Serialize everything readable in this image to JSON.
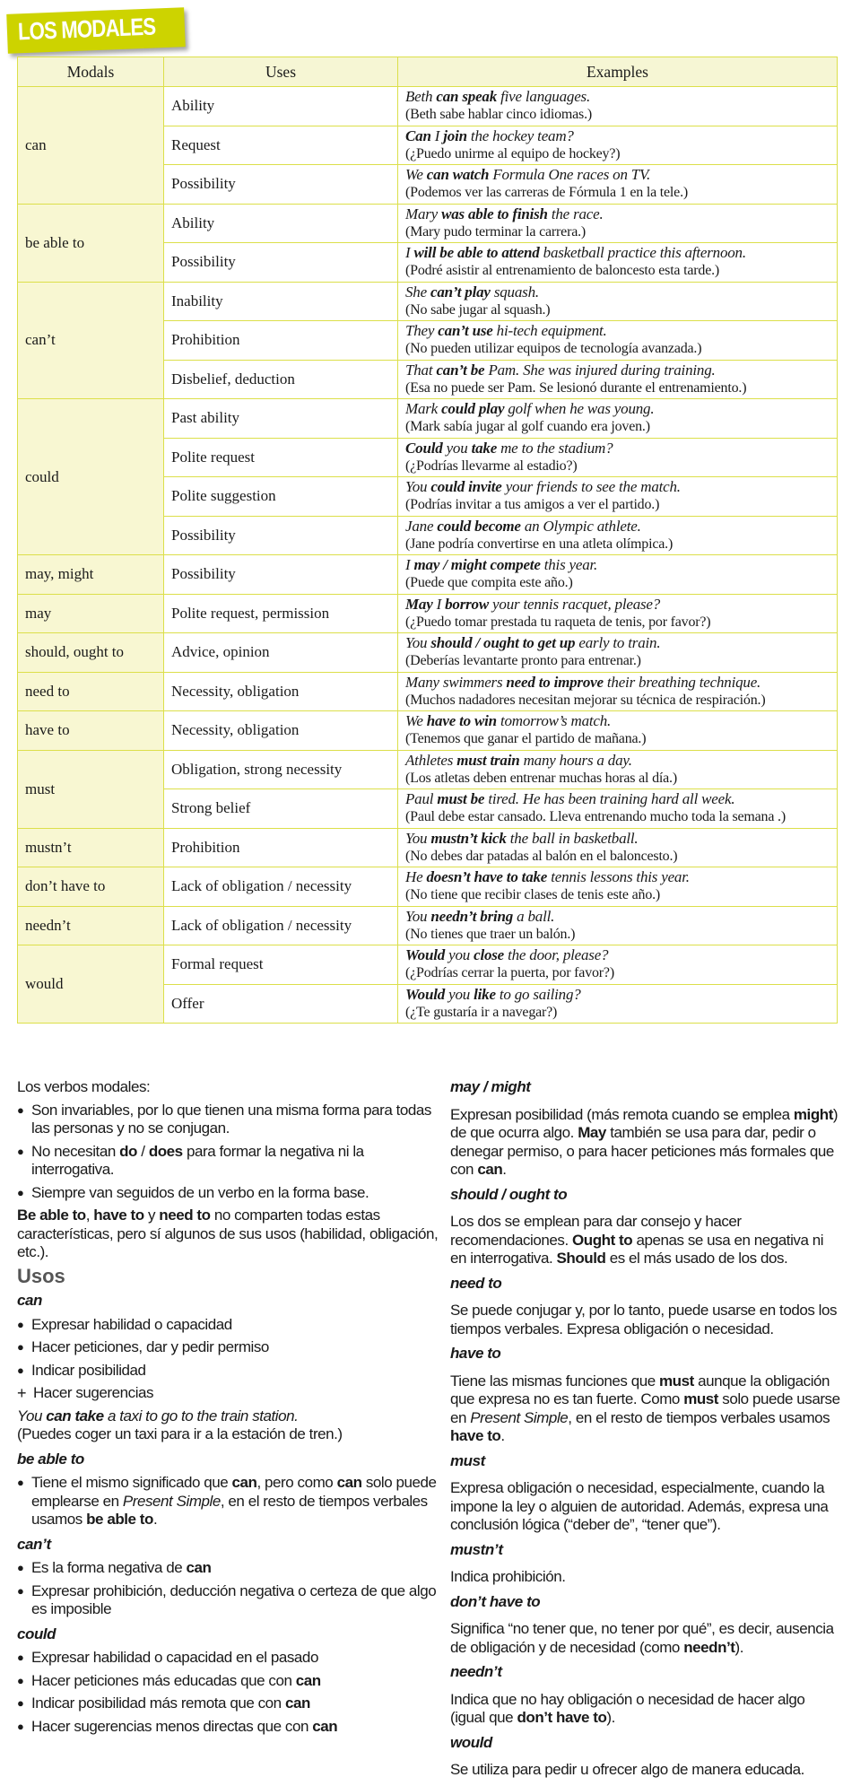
{
  "title": "LOS MODALES",
  "colors": {
    "accent": "#cdd300",
    "table_border": "#dcdf4a",
    "header_bg": "#f6f6d4",
    "modal_bg": "#f8f7d2"
  },
  "table": {
    "headers": [
      "Modals",
      "Uses",
      "Examples"
    ],
    "groups": [
      {
        "modal": "can",
        "rows": [
          {
            "use": "Ability",
            "en": [
              "Beth ",
              "can speak",
              " five languages."
            ],
            "es": "(Beth sabe hablar cinco idiomas.)"
          },
          {
            "use": "Request",
            "en": [
              "",
              "Can",
              " I ",
              "join",
              " the hockey team?"
            ],
            "es": "(¿Puedo unirme al equipo de hockey?)"
          },
          {
            "use": "Possibility",
            "en": [
              "We ",
              "can watch",
              " Formula One races on TV."
            ],
            "es": "(Podemos ver las carreras de Fórmula 1 en la tele.)"
          }
        ]
      },
      {
        "modal": "be able to",
        "rows": [
          {
            "use": "Ability",
            "en": [
              "Mary ",
              "was able to finish",
              " the race."
            ],
            "es": "(Mary pudo terminar la carrera.)"
          },
          {
            "use": "Possibility",
            "en": [
              "I ",
              "will be able to attend",
              " basketball practice this afternoon."
            ],
            "es": "(Podré asistir al entrenamiento de baloncesto esta tarde.)"
          }
        ]
      },
      {
        "modal": "can’t",
        "rows": [
          {
            "use": "Inability",
            "en": [
              "She ",
              "can’t play",
              " squash."
            ],
            "es": "(No sabe jugar al squash.)"
          },
          {
            "use": "Prohibition",
            "en": [
              "They ",
              "can’t use",
              " hi-tech equipment."
            ],
            "es": "(No pueden utilizar equipos de tecnología avanzada.)"
          },
          {
            "use": "Disbelief, deduction",
            "en": [
              "That ",
              "can’t be",
              " Pam. She was injured during training."
            ],
            "es": "(Esa no puede ser Pam. Se lesionó durante el entrenamiento.)"
          }
        ]
      },
      {
        "modal": "could",
        "rows": [
          {
            "use": "Past ability",
            "en": [
              "Mark ",
              "could play",
              " golf when he was young."
            ],
            "es": "(Mark sabía jugar al golf cuando era joven.)"
          },
          {
            "use": "Polite request",
            "en": [
              "",
              "Could",
              " you ",
              "take",
              " me to the stadium?"
            ],
            "es": "(¿Podrías llevarme al estadio?)"
          },
          {
            "use": "Polite suggestion",
            "en": [
              "You ",
              "could invite",
              " your friends to see the match."
            ],
            "es": "(Podrías invitar a tus amigos a ver el partido.)"
          },
          {
            "use": "Possibility",
            "en": [
              "Jane ",
              "could become",
              " an Olympic athlete."
            ],
            "es": "(Jane podría convertirse en una atleta olímpica.)"
          }
        ]
      },
      {
        "modal": "may, might",
        "rows": [
          {
            "use": "Possibility",
            "en": [
              "I ",
              "may / might compete",
              " this year."
            ],
            "es": "(Puede que compita este año.)"
          }
        ]
      },
      {
        "modal": "may",
        "rows": [
          {
            "use": "Polite request, permission",
            "en": [
              "",
              "May",
              " I ",
              "borrow",
              " your tennis racquet, please?"
            ],
            "es": "(¿Puedo tomar prestada tu raqueta de tenis, por favor?)"
          }
        ]
      },
      {
        "modal": "should, ought to",
        "rows": [
          {
            "use": "Advice, opinion",
            "en": [
              "You ",
              "should / ought to get up",
              " early to train."
            ],
            "es": "(Deberías levantarte pronto para entrenar.)"
          }
        ]
      },
      {
        "modal": "need to",
        "rows": [
          {
            "use": "Necessity, obligation",
            "en": [
              "Many swimmers ",
              "need to improve",
              " their breathing technique."
            ],
            "es": "(Muchos nadadores necesitan mejorar su técnica de respiración.)"
          }
        ]
      },
      {
        "modal": "have to",
        "rows": [
          {
            "use": "Necessity, obligation",
            "en": [
              "We ",
              "have to win",
              " tomorrow’s match."
            ],
            "es": "(Tenemos que ganar el partido de mañana.)"
          }
        ]
      },
      {
        "modal": "must",
        "rows": [
          {
            "use": "Obligation, strong necessity",
            "en": [
              "Athletes ",
              "must train",
              " many hours a day."
            ],
            "es": "(Los atletas deben entrenar muchas horas al día.)"
          },
          {
            "use": "Strong belief",
            "en": [
              "Paul ",
              "must be",
              " tired. He has been training hard all week."
            ],
            "es": "(Paul debe estar cansado. Lleva entrenando mucho toda la semana .)"
          }
        ]
      },
      {
        "modal": "mustn’t",
        "rows": [
          {
            "use": "Prohibition",
            "en": [
              "You ",
              "mustn’t kick",
              " the ball in basketball."
            ],
            "es": "(No debes dar patadas al balón en el baloncesto.)"
          }
        ]
      },
      {
        "modal": "don’t have to",
        "rows": [
          {
            "use": "Lack of obligation / necessity",
            "en": [
              "He ",
              "doesn’t have to take",
              " tennis lessons this year."
            ],
            "es": "(No tiene que recibir clases de tenis este año.)"
          }
        ]
      },
      {
        "modal": "needn’t",
        "rows": [
          {
            "use": "Lack of obligation / necessity",
            "en": [
              "You ",
              "needn’t bring",
              " a ball."
            ],
            "es": "(No tienes que traer un balón.)"
          }
        ]
      },
      {
        "modal": "would",
        "rows": [
          {
            "use": "Formal request",
            "en": [
              "",
              "Would",
              " you ",
              "close",
              " the door, please?"
            ],
            "es": "(¿Podrías cerrar la puerta, por favor?)"
          },
          {
            "use": "Offer",
            "en": [
              "",
              "Would",
              " you ",
              "like",
              " to go sailing?"
            ],
            "es": "(¿Te gustaría ir a navegar?)"
          }
        ]
      }
    ]
  },
  "notes_left": [
    {
      "type": "p",
      "segs": [
        [
          "Los verbos modales:",
          ""
        ]
      ]
    },
    {
      "type": "bullet",
      "segs": [
        [
          "Son invariables, por lo que tienen una misma forma para todas las personas y no se conjugan.",
          ""
        ]
      ]
    },
    {
      "type": "bullet",
      "segs": [
        [
          "No necesitan ",
          ""
        ],
        [
          "do",
          "b"
        ],
        [
          " / ",
          ""
        ],
        [
          "does",
          "b"
        ],
        [
          " para formar la negativa ni la interrogativa.",
          ""
        ]
      ]
    },
    {
      "type": "bullet",
      "segs": [
        [
          "Siempre van seguidos de un verbo en la forma base.",
          ""
        ]
      ]
    },
    {
      "type": "p",
      "segs": [
        [
          "Be able to",
          "b"
        ],
        [
          ", ",
          ""
        ],
        [
          "have to",
          "b"
        ],
        [
          " y ",
          ""
        ],
        [
          "need to",
          "b"
        ],
        [
          " no comparten todas estas características, pero sí algunos de sus usos (habilidad, obligación, etc.).",
          ""
        ]
      ]
    },
    {
      "type": "title",
      "segs": [
        [
          "Usos",
          ""
        ]
      ]
    },
    {
      "type": "h",
      "segs": [
        [
          "can",
          ""
        ]
      ]
    },
    {
      "type": "bullet",
      "segs": [
        [
          "Expresar habilidad o capacidad",
          ""
        ]
      ]
    },
    {
      "type": "bullet",
      "segs": [
        [
          "Hacer peticiones, dar y pedir permiso",
          ""
        ]
      ]
    },
    {
      "type": "bullet",
      "segs": [
        [
          "Indicar posibilidad",
          ""
        ]
      ]
    },
    {
      "type": "plus",
      "segs": [
        [
          "Hacer sugerencias",
          ""
        ]
      ]
    },
    {
      "type": "p",
      "segs": [
        [
          "You ",
          "i"
        ],
        [
          "can take",
          "bi"
        ],
        [
          " a taxi to go to the train station.",
          "i"
        ],
        [
          "\n(Puedes coger un taxi para ir a la estación de tren.)",
          ""
        ]
      ]
    },
    {
      "type": "h",
      "segs": [
        [
          "be able to",
          ""
        ]
      ]
    },
    {
      "type": "bullet",
      "segs": [
        [
          "Tiene el mismo significado que ",
          ""
        ],
        [
          "can",
          "b"
        ],
        [
          ", pero como ",
          ""
        ],
        [
          "can",
          "b"
        ],
        [
          " solo puede emplearse en ",
          ""
        ],
        [
          "Present Simple",
          "i"
        ],
        [
          ", en el resto de tiempos verbales usamos ",
          ""
        ],
        [
          "be able to",
          "b"
        ],
        [
          ".",
          ""
        ]
      ]
    },
    {
      "type": "h",
      "segs": [
        [
          "can’t",
          ""
        ]
      ]
    },
    {
      "type": "bullet",
      "segs": [
        [
          "Es la forma negativa de ",
          ""
        ],
        [
          "can",
          "b"
        ]
      ]
    },
    {
      "type": "bullet",
      "segs": [
        [
          "Expresar prohibición, deducción negativa o certeza de que algo es imposible",
          ""
        ]
      ]
    },
    {
      "type": "h",
      "segs": [
        [
          "could",
          ""
        ]
      ]
    },
    {
      "type": "bullet",
      "segs": [
        [
          "Expresar habilidad o capacidad en el pasado",
          ""
        ]
      ]
    },
    {
      "type": "bullet",
      "segs": [
        [
          "Hacer peticiones más educadas que con ",
          ""
        ],
        [
          "can",
          "b"
        ]
      ]
    },
    {
      "type": "bullet",
      "segs": [
        [
          "Indicar posibilidad más remota que con ",
          ""
        ],
        [
          "can",
          "b"
        ]
      ]
    },
    {
      "type": "bullet",
      "segs": [
        [
          "Hacer sugerencias menos directas que con ",
          ""
        ],
        [
          "can",
          "b"
        ]
      ]
    }
  ],
  "notes_right": [
    {
      "type": "h",
      "segs": [
        [
          "may / might",
          ""
        ]
      ]
    },
    {
      "type": "p",
      "segs": [
        [
          "Expresan posibilidad (más remota cuando se emplea ",
          ""
        ],
        [
          "might",
          "b"
        ],
        [
          ") de que ocurra algo. ",
          ""
        ],
        [
          "May",
          "b"
        ],
        [
          " también se usa para dar, pedir o denegar permiso, o para hacer peticiones más formales que con ",
          ""
        ],
        [
          "can",
          "b"
        ],
        [
          ".",
          ""
        ]
      ]
    },
    {
      "type": "h",
      "segs": [
        [
          "should / ought to",
          ""
        ]
      ]
    },
    {
      "type": "p",
      "segs": [
        [
          "Los dos se emplean para dar consejo y hacer recomendaciones. ",
          ""
        ],
        [
          "Ought to",
          "b"
        ],
        [
          " apenas se usa en negativa ni en interrogativa. ",
          ""
        ],
        [
          "Should",
          "b"
        ],
        [
          " es el más usado de los dos.",
          ""
        ]
      ]
    },
    {
      "type": "h",
      "segs": [
        [
          "need to",
          ""
        ]
      ]
    },
    {
      "type": "p",
      "segs": [
        [
          "Se puede conjugar y, por lo tanto, puede usarse en todos los tiempos verbales. Expresa obligación o necesidad.",
          ""
        ]
      ]
    },
    {
      "type": "h",
      "segs": [
        [
          "have to",
          ""
        ]
      ]
    },
    {
      "type": "p",
      "segs": [
        [
          "Tiene las mismas funciones que ",
          ""
        ],
        [
          "must",
          "b"
        ],
        [
          " aunque la obligación que expresa no es tan fuerte. Como ",
          ""
        ],
        [
          "must",
          "b"
        ],
        [
          " solo puede usarse en ",
          ""
        ],
        [
          "Present Simple",
          "i"
        ],
        [
          ", en el resto de tiempos verbales usamos ",
          ""
        ],
        [
          "have to",
          "b"
        ],
        [
          ".",
          ""
        ]
      ]
    },
    {
      "type": "h",
      "segs": [
        [
          "must",
          ""
        ]
      ]
    },
    {
      "type": "p",
      "segs": [
        [
          "Expresa obligación o necesidad, especialmente, cuando la impone la ley o alguien de autoridad. Además, expresa una conclusión lógica (“deber de”, “tener que”).",
          ""
        ]
      ]
    },
    {
      "type": "h",
      "segs": [
        [
          "mustn’t",
          ""
        ]
      ]
    },
    {
      "type": "p",
      "segs": [
        [
          "Indica prohibición.",
          ""
        ]
      ]
    },
    {
      "type": "h",
      "segs": [
        [
          "don’t have to",
          ""
        ]
      ]
    },
    {
      "type": "p",
      "segs": [
        [
          "Significa “no tener que, no tener por qué”, es decir, ausencia de obligación y de necesidad (como ",
          ""
        ],
        [
          "needn’t",
          "b"
        ],
        [
          ").",
          ""
        ]
      ]
    },
    {
      "type": "h",
      "segs": [
        [
          "needn’t",
          ""
        ]
      ]
    },
    {
      "type": "p",
      "segs": [
        [
          "Indica que no hay obligación o necesidad de hacer algo (igual que ",
          ""
        ],
        [
          "don’t have to",
          "b"
        ],
        [
          ").",
          ""
        ]
      ]
    },
    {
      "type": "h",
      "segs": [
        [
          "would",
          ""
        ]
      ]
    },
    {
      "type": "p",
      "segs": [
        [
          "Se utiliza para pedir u ofrecer algo de manera educada.",
          ""
        ]
      ]
    }
  ]
}
